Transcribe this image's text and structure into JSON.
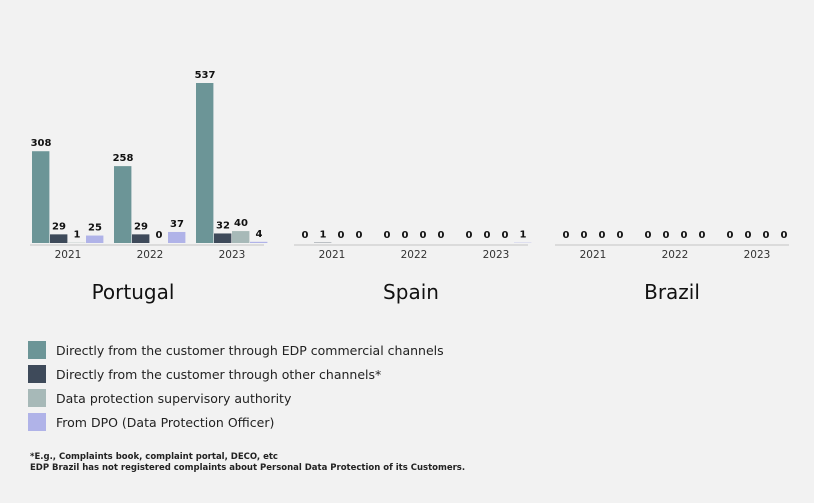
{
  "chart_data": {
    "type": "bar",
    "colors": [
      "#6c9597",
      "#3e4a5a",
      "#a7b9b8",
      "#b0b3e8"
    ],
    "series_names": [
      "Directly from the customer through EDP commercial channels",
      "Directly from the customer through other channels*",
      "Data protection supervisory authority",
      "From DPO (Data Protection Officer)"
    ],
    "panels": [
      {
        "country": "Portugal",
        "years": [
          {
            "year": "2021",
            "values": [
              308,
              29,
              1,
              25
            ]
          },
          {
            "year": "2022",
            "values": [
              258,
              29,
              0,
              37
            ]
          },
          {
            "year": "2023",
            "values": [
              537,
              32,
              40,
              4
            ]
          }
        ]
      },
      {
        "country": "Spain",
        "years": [
          {
            "year": "2021",
            "values": [
              0,
              1,
              0,
              0
            ]
          },
          {
            "year": "2022",
            "values": [
              0,
              0,
              0,
              0
            ]
          },
          {
            "year": "2023",
            "values": [
              0,
              0,
              0,
              1
            ]
          }
        ]
      },
      {
        "country": "Brazil",
        "years": [
          {
            "year": "2021",
            "values": [
              0,
              0,
              0,
              0
            ]
          },
          {
            "year": "2022",
            "values": [
              0,
              0,
              0,
              0
            ]
          },
          {
            "year": "2023",
            "values": [
              0,
              0,
              0,
              0
            ]
          }
        ]
      }
    ]
  },
  "notes": [
    "*E.g., Complaints book, complaint portal, DECO, etc",
    "EDP Brazil has not registered complaints about Personal Data Protection of its Customers."
  ]
}
